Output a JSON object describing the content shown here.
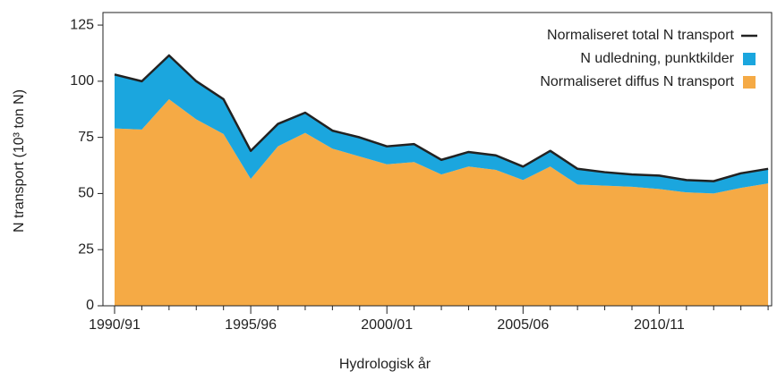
{
  "chart_data": {
    "type": "stacked-area",
    "x_label": "Hydrologisk år",
    "y_label": "N transport (10³ ton N)",
    "categories": [
      "1990/91",
      null,
      null,
      null,
      null,
      "1995/96",
      null,
      null,
      null,
      null,
      "2000/01",
      null,
      null,
      null,
      null,
      "2005/06",
      null,
      null,
      null,
      null,
      "2010/11",
      null,
      null,
      null,
      null
    ],
    "series": [
      {
        "name": "Normaliseret diffus N transport",
        "color": "#f5aa45",
        "kind": "area",
        "values": [
          79,
          78.5,
          92,
          83,
          76.5,
          56.5,
          71,
          77,
          70,
          66.5,
          63,
          64,
          58.5,
          62,
          60.5,
          56,
          62,
          54,
          53.5,
          53,
          52,
          50.5,
          50,
          52.5,
          54.5
        ]
      },
      {
        "name": "N udledning, punktkilder",
        "color": "#1ba6de",
        "kind": "area",
        "values": [
          24,
          21.5,
          19.5,
          17,
          15.5,
          12.5,
          10,
          9,
          8,
          8.5,
          8,
          8,
          6.5,
          6.5,
          6.5,
          6,
          7,
          7,
          6,
          5.5,
          6,
          5.5,
          5.5,
          6.5,
          6.5
        ]
      },
      {
        "name": "Normaliseret total N transport",
        "color": "#222222",
        "kind": "line",
        "values": [
          103,
          100,
          111.5,
          100,
          92,
          69,
          81,
          86,
          78,
          75,
          71,
          72,
          65,
          68.5,
          67,
          62,
          69,
          61,
          59.5,
          58.5,
          58,
          56,
          55.5,
          59,
          61
        ]
      }
    ],
    "ylim": [
      0,
      130.6
    ],
    "yticks": [
      0,
      25,
      50,
      75,
      100,
      125
    ],
    "legend": "top-right"
  }
}
